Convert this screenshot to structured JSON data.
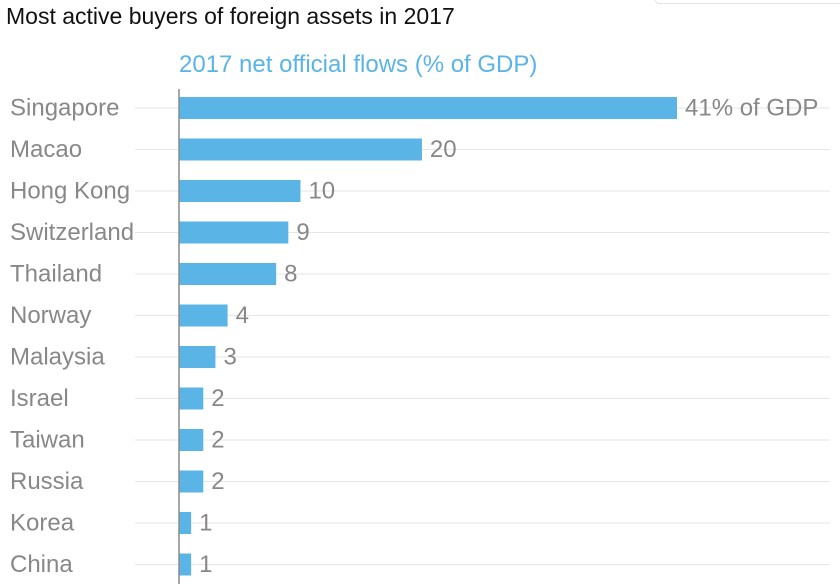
{
  "chart_data": {
    "type": "bar",
    "orientation": "horizontal",
    "title": "Most active buyers of foreign assets in 2017",
    "subtitle": "2017 net official flows (% of GDP)",
    "categories": [
      "Singapore",
      "Macao",
      "Hong Kong",
      "Switzerland",
      "Thailand",
      "Norway",
      "Malaysia",
      "Israel",
      "Taiwan",
      "Russia",
      "Korea",
      "China"
    ],
    "values": [
      41,
      20,
      10,
      9,
      8,
      4,
      3,
      2,
      2,
      2,
      1,
      1
    ],
    "value_labels": [
      "41% of GDP",
      "20",
      "10",
      "9",
      "8",
      "4",
      "3",
      "2",
      "2",
      "2",
      "1",
      "1"
    ],
    "xlim": [
      0,
      41
    ],
    "grid": true,
    "colors": {
      "bar": "#5AB4E5",
      "subtitle": "#5AB4E5",
      "label": "#888888",
      "grid": "#e6e6e6",
      "axis": "#8a8a8a"
    }
  }
}
